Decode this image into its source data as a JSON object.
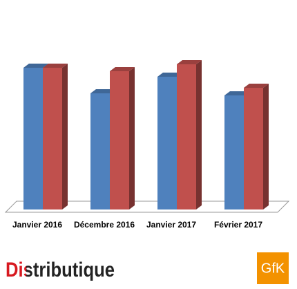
{
  "chart_data": {
    "type": "bar3d",
    "categories": [
      "Janvier 2016",
      "Décembre 2016",
      "Janvier 2017",
      "Février 2017"
    ],
    "series": [
      {
        "color": "#4f81bd",
        "values": [
          205,
          168,
          192,
          165
        ]
      },
      {
        "color": "#c0504d",
        "values": [
          205,
          200,
          210,
          176
        ]
      }
    ],
    "ylim": [
      0,
      220
    ]
  },
  "footer": {
    "left_logo": "Distributique",
    "right_logo": "GfK"
  }
}
